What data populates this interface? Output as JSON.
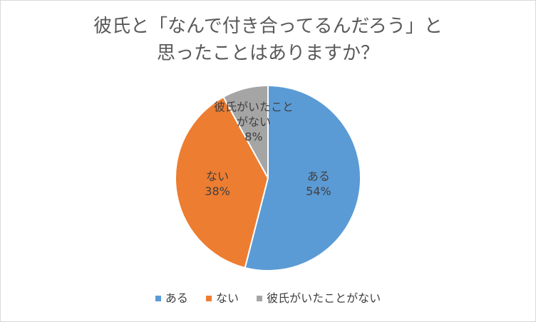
{
  "chart_data": {
    "type": "pie",
    "title_lines": [
      "彼氏と「なんで付き合ってるんだろう」と",
      "思ったことはありますか？"
    ],
    "slices": [
      {
        "label": "ある",
        "label_lines": [
          "ある"
        ],
        "value": 54,
        "display": "54%",
        "color": "#5b9bd5"
      },
      {
        "label": "ない",
        "label_lines": [
          "ない"
        ],
        "value": 38,
        "display": "38%",
        "color": "#ed7d31"
      },
      {
        "label": "彼氏がいたことがない",
        "label_lines": [
          "彼氏がいたこと",
          "がない"
        ],
        "value": 8,
        "display": "8%",
        "color": "#a5a5a5"
      }
    ],
    "legend": [
      "ある",
      "ない",
      "彼氏がいたことがない"
    ],
    "legend_position": "bottom",
    "start": "12 o'clock",
    "direction": "clockwise"
  }
}
